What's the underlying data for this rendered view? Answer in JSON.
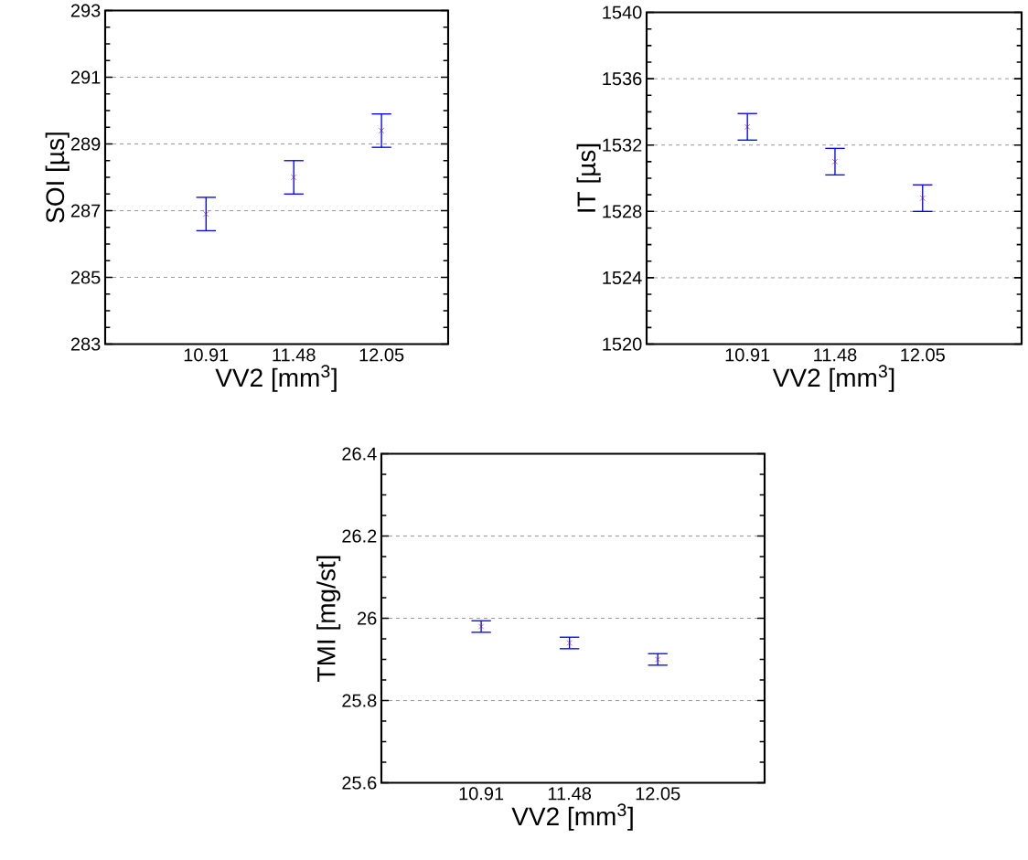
{
  "chart_data": [
    {
      "type": "scatter",
      "categories": [
        "10.91",
        "11.48",
        "12.05"
      ],
      "xlabel": "VV2 [mm$^{3}$]",
      "ylabel": "SOI [µs]",
      "ylim": [
        283,
        293
      ],
      "yticks": [
        283,
        285,
        287,
        289,
        291,
        293
      ],
      "grid": "y",
      "marker": "cross",
      "series": [
        {
          "color": "#800040",
          "values": [
            286.9,
            288.0,
            289.4
          ],
          "errors": [
            0.5,
            0.5,
            0.5
          ]
        }
      ]
    },
    {
      "type": "scatter",
      "categories": [
        "10.91",
        "11.48",
        "12.05"
      ],
      "xlabel": "VV2 [mm$^{3}$]",
      "ylabel": "IT [µs]",
      "ylim": [
        1520,
        1540
      ],
      "yticks": [
        1520,
        1524,
        1528,
        1532,
        1536,
        1540
      ],
      "grid": "y",
      "marker": "cross",
      "series": [
        {
          "color": "#800040",
          "values": [
            1533.1,
            1531.0,
            1528.8
          ],
          "errors": [
            0.8,
            0.8,
            0.8
          ]
        }
      ]
    },
    {
      "type": "scatter",
      "categories": [
        "10.91",
        "11.48",
        "12.05"
      ],
      "xlabel": "VV2 [mm$^{3}$]",
      "ylabel": "TMI [mg/st]",
      "ylim": [
        25.6,
        26.4
      ],
      "yticks": [
        25.6,
        25.8,
        26,
        26.2,
        26.4
      ],
      "grid": "y",
      "marker": "cross",
      "series": [
        {
          "color": "#800040",
          "values": [
            25.98,
            25.94,
            25.9
          ],
          "errors": [
            0.014,
            0.014,
            0.014
          ]
        }
      ]
    }
  ]
}
